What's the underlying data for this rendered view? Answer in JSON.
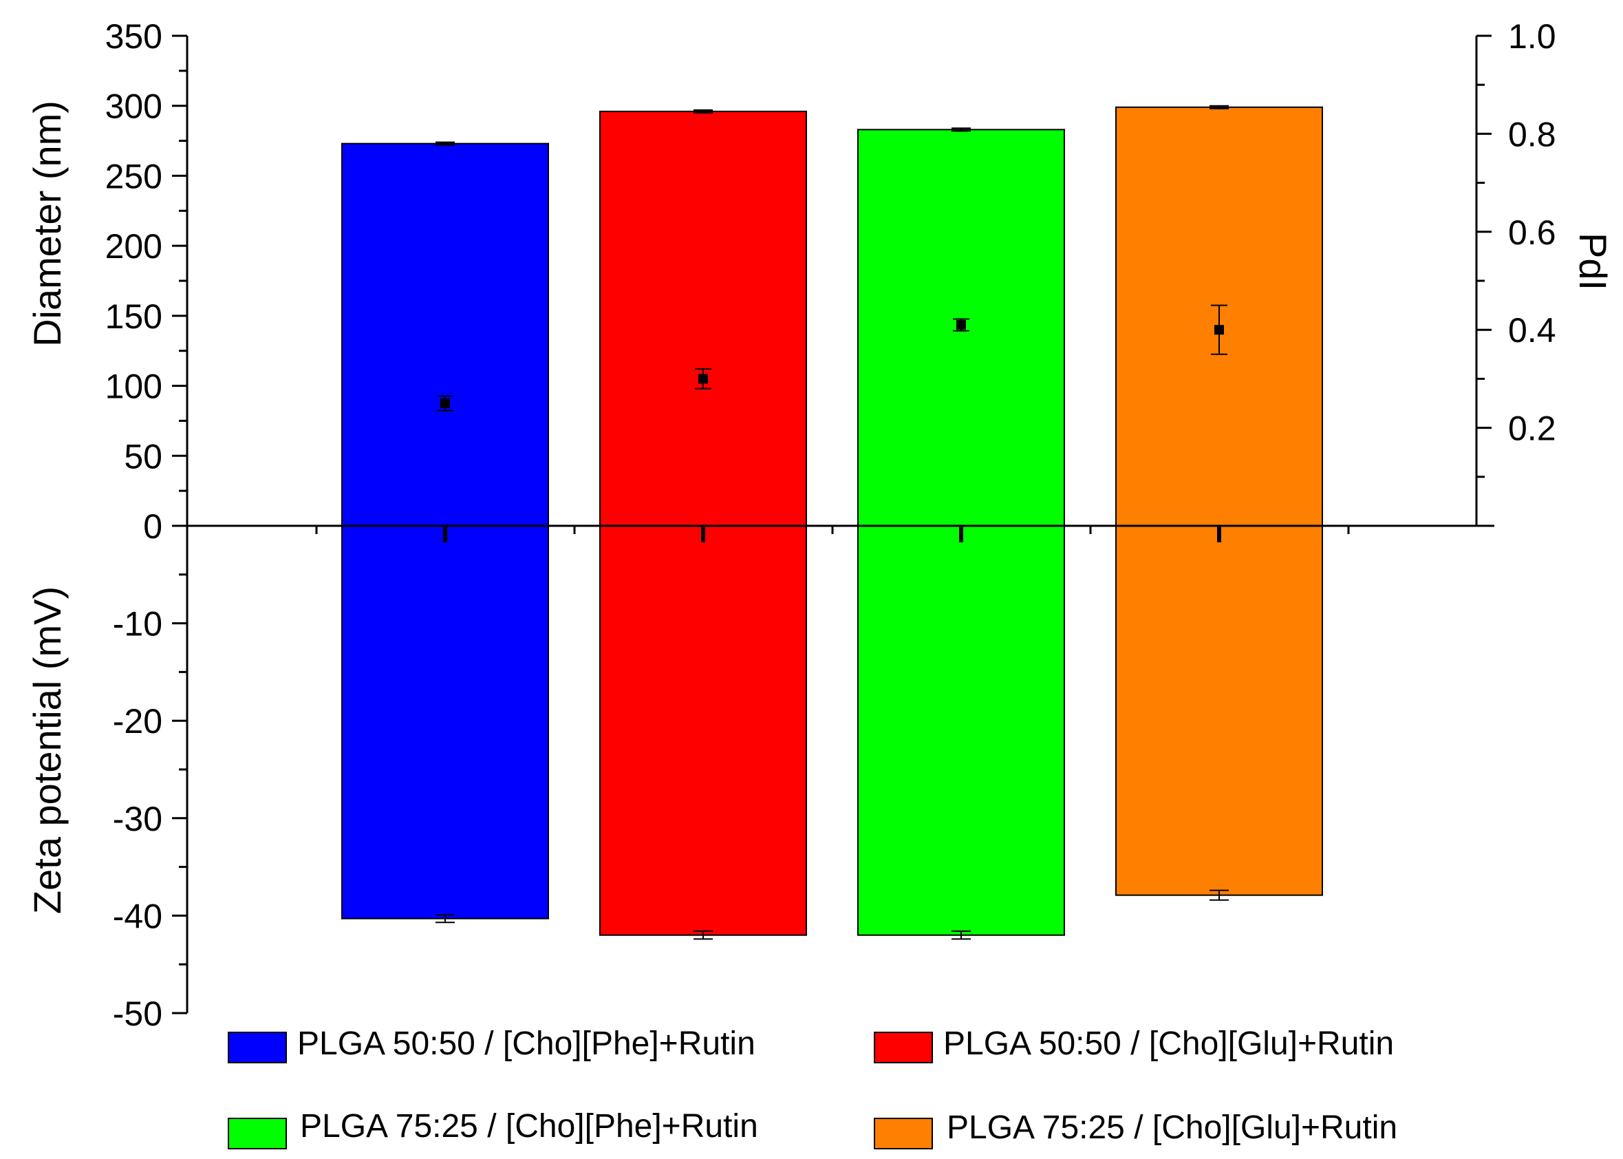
{
  "chart_data": {
    "type": "bar",
    "categories": [
      "PLGA 50:50 / [Cho][Phe]+Rutin",
      "PLGA 50:50 / [Cho][Glu]+Rutin",
      "PLGA 75:25 / [Cho][Phe]+Rutin",
      "PLGA 75:25 / [Cho][Glu]+Rutin"
    ],
    "colors": [
      "#0000ff",
      "#ff0000",
      "#00ff00",
      "#ff8000"
    ],
    "series": [
      {
        "name": "",
        "axis": "left-upper",
        "values": [
          273,
          296,
          283,
          299
        ],
        "errors": [
          1,
          1,
          1,
          1
        ]
      },
      {
        "name": "",
        "axis": "left-lower",
        "values": [
          -40.3,
          -42.0,
          -42.0,
          -37.9
        ],
        "errors": [
          0.4,
          0.4,
          0.4,
          0.5
        ]
      },
      {
        "name": "",
        "axis": "right",
        "values": [
          0.25,
          0.3,
          0.41,
          0.4
        ],
        "errors": [
          0.015,
          0.02,
          0.012,
          0.05
        ]
      }
    ],
    "axes": {
      "diameter": {
        "label": "Diameter (nm)",
        "ylim": [
          0,
          350
        ],
        "ticks": [
          "350",
          "300",
          "250",
          "200",
          "150",
          "100",
          "50",
          "0"
        ]
      },
      "zeta": {
        "label": "Zeta potential (mV)",
        "ylim": [
          -50,
          0
        ],
        "ticks": [
          "-10",
          "-20",
          "-30",
          "-40",
          "-50"
        ]
      },
      "pdi": {
        "label": "PdI",
        "ylim": [
          0,
          1.0
        ],
        "ticks": [
          "1.0",
          "0.8",
          "0.6",
          "0.4",
          "0.2"
        ]
      }
    },
    "legend_placement": "bottom"
  }
}
